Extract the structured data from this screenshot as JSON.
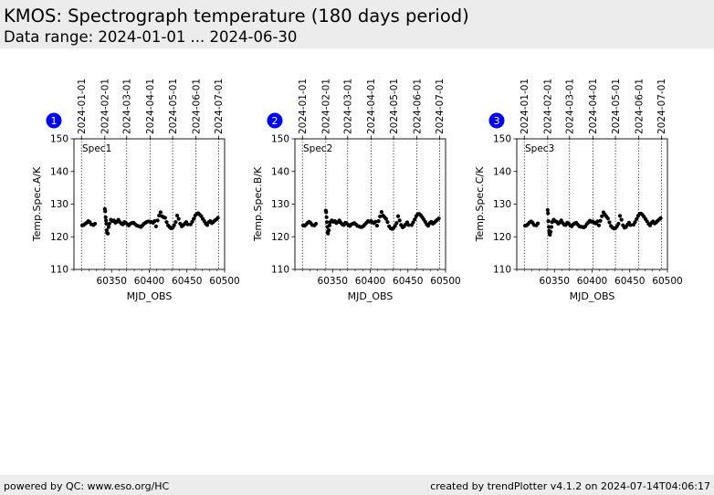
{
  "header": {
    "title": "KMOS: Spectrograph temperature (180 days period)",
    "subtitle": "Data range: 2024-01-01 ... 2024-06-30"
  },
  "footer": {
    "left": "powered by QC: www.eso.org/HC",
    "right": "created by trendPlotter v4.1.2 on 2024-07-14T04:06:17"
  },
  "colors": {
    "badge": "#0000ff",
    "markers": "#000000",
    "panel_background": "#ececec"
  },
  "chart_data": [
    {
      "type": "scatter",
      "badge": "1",
      "label": "Spec1",
      "xlabel": "MJD_OBS",
      "ylabel": "Temp.Spec.A/K",
      "xlim": [
        60300,
        60500
      ],
      "ylim": [
        110,
        150
      ],
      "xticks": [
        60350,
        60400,
        60450,
        60500
      ],
      "yticks": [
        110,
        120,
        130,
        140,
        150
      ],
      "date_ticks": [
        {
          "mjd": 60310,
          "label": "2024-01-01"
        },
        {
          "mjd": 60341,
          "label": "2024-02-01"
        },
        {
          "mjd": 60370,
          "label": "2024-03-01"
        },
        {
          "mjd": 60401,
          "label": "2024-04-01"
        },
        {
          "mjd": 60431,
          "label": "2024-05-01"
        },
        {
          "mjd": 60462,
          "label": "2024-06-01"
        },
        {
          "mjd": 60492,
          "label": "2024-07-01"
        }
      ],
      "series": [
        {
          "x": [
            60311,
            60313,
            60315,
            60317,
            60319,
            60321,
            60323,
            60326,
            60328,
            60341,
            60341.5,
            60342,
            60342.5,
            60343,
            60343.5,
            60344,
            60345,
            60346,
            60347,
            60349,
            60351,
            60353,
            60355,
            60357,
            60359,
            60361,
            60363,
            60365,
            60367,
            60369,
            60371,
            60373,
            60375,
            60377,
            60379,
            60381,
            60383,
            60385,
            60387,
            60389,
            60391,
            60393,
            60395,
            60397,
            60399,
            60401,
            60403,
            60405,
            60407,
            60409,
            60411,
            60413,
            60415,
            60417,
            60419,
            60421,
            60423,
            60425,
            60427,
            60429,
            60431,
            60433,
            60435,
            60437,
            60439,
            60441,
            60443,
            60445,
            60447,
            60449,
            60451,
            60455,
            60457,
            60459,
            60461,
            60463,
            60465,
            60467,
            60469,
            60471,
            60473,
            60475,
            60477,
            60479,
            60481,
            60483,
            60485,
            60487,
            60489,
            60491
          ],
          "y": [
            123.5,
            123.6,
            124.0,
            124.3,
            124.8,
            124.5,
            123.8,
            123.6,
            124.0,
            128.5,
            127.8,
            126.0,
            125.0,
            124.0,
            122.0,
            121.2,
            121.0,
            123.0,
            124.0,
            125.2,
            124.8,
            125.0,
            124.3,
            124.6,
            125.2,
            124.5,
            124.0,
            123.8,
            124.5,
            124.2,
            123.8,
            123.5,
            124.0,
            124.2,
            124.3,
            123.9,
            123.5,
            123.3,
            123.2,
            123.0,
            123.5,
            124.0,
            124.3,
            124.6,
            124.7,
            124.6,
            124.5,
            124.3,
            124.8,
            123.2,
            125.0,
            126.5,
            127.5,
            126.3,
            126.0,
            125.8,
            124.5,
            123.5,
            123.0,
            122.6,
            122.8,
            123.5,
            124.5,
            126.5,
            125.5,
            124.0,
            123.2,
            123.5,
            124.0,
            124.5,
            123.8,
            123.8,
            124.6,
            125.5,
            126.5,
            127.0,
            127.2,
            126.8,
            126.3,
            125.5,
            124.8,
            124.0,
            123.6,
            124.5,
            124.8,
            124.2,
            124.5,
            125.0,
            125.3,
            125.8
          ]
        }
      ]
    },
    {
      "type": "scatter",
      "badge": "2",
      "label": "Spec2",
      "xlabel": "MJD_OBS",
      "ylabel": "Temp.Spec.B/K",
      "xlim": [
        60300,
        60500
      ],
      "ylim": [
        110,
        150
      ],
      "xticks": [
        60350,
        60400,
        60450,
        60500
      ],
      "yticks": [
        110,
        120,
        130,
        140,
        150
      ],
      "date_ticks": [
        {
          "mjd": 60310,
          "label": "2024-01-01"
        },
        {
          "mjd": 60341,
          "label": "2024-02-01"
        },
        {
          "mjd": 60370,
          "label": "2024-03-01"
        },
        {
          "mjd": 60401,
          "label": "2024-04-01"
        },
        {
          "mjd": 60431,
          "label": "2024-05-01"
        },
        {
          "mjd": 60462,
          "label": "2024-06-01"
        },
        {
          "mjd": 60492,
          "label": "2024-07-01"
        }
      ],
      "series": [
        {
          "x": [
            60311,
            60313,
            60315,
            60317,
            60319,
            60321,
            60323,
            60326,
            60328,
            60341,
            60341.5,
            60342,
            60342.5,
            60343,
            60343.5,
            60344,
            60345,
            60346,
            60347,
            60349,
            60351,
            60353,
            60355,
            60357,
            60359,
            60361,
            60363,
            60365,
            60367,
            60369,
            60371,
            60373,
            60375,
            60377,
            60379,
            60381,
            60383,
            60385,
            60387,
            60389,
            60391,
            60393,
            60395,
            60397,
            60399,
            60401,
            60403,
            60405,
            60407,
            60409,
            60411,
            60413,
            60415,
            60417,
            60419,
            60421,
            60423,
            60425,
            60427,
            60429,
            60431,
            60433,
            60435,
            60437,
            60439,
            60441,
            60443,
            60445,
            60447,
            60449,
            60451,
            60455,
            60457,
            60459,
            60461,
            60463,
            60465,
            60467,
            60469,
            60471,
            60473,
            60475,
            60477,
            60479,
            60481,
            60483,
            60485,
            60487,
            60489,
            60491
          ],
          "y": [
            123.5,
            123.4,
            123.8,
            124.3,
            124.6,
            124.2,
            123.6,
            123.5,
            124.0,
            128.0,
            127.5,
            126.0,
            124.5,
            123.0,
            121.5,
            121.0,
            122.0,
            123.5,
            124.5,
            125.0,
            124.6,
            124.8,
            124.2,
            124.5,
            125.0,
            124.3,
            123.8,
            123.6,
            124.3,
            124.0,
            123.6,
            123.3,
            123.8,
            124.0,
            124.2,
            123.8,
            123.3,
            123.2,
            123.0,
            123.0,
            123.3,
            123.8,
            124.3,
            124.8,
            124.6,
            124.8,
            124.4,
            124.2,
            124.6,
            123.4,
            124.8,
            126.2,
            127.6,
            126.5,
            126.0,
            125.5,
            124.5,
            123.2,
            122.6,
            122.4,
            122.7,
            123.3,
            124.2,
            126.3,
            125.0,
            123.6,
            122.9,
            123.2,
            123.8,
            124.4,
            123.6,
            123.6,
            124.4,
            125.3,
            126.3,
            126.9,
            127.0,
            126.6,
            126.0,
            125.3,
            124.6,
            123.8,
            123.4,
            124.2,
            124.6,
            124.0,
            124.3,
            124.8,
            125.2,
            125.6
          ]
        }
      ]
    },
    {
      "type": "scatter",
      "badge": "3",
      "label": "Spec3",
      "xlabel": "MJD_OBS",
      "ylabel": "Temp.Spec.C/K",
      "xlim": [
        60300,
        60500
      ],
      "ylim": [
        110,
        150
      ],
      "xticks": [
        60350,
        60400,
        60450,
        60500
      ],
      "yticks": [
        110,
        120,
        130,
        140,
        150
      ],
      "date_ticks": [
        {
          "mjd": 60310,
          "label": "2024-01-01"
        },
        {
          "mjd": 60341,
          "label": "2024-02-01"
        },
        {
          "mjd": 60370,
          "label": "2024-03-01"
        },
        {
          "mjd": 60401,
          "label": "2024-04-01"
        },
        {
          "mjd": 60431,
          "label": "2024-05-01"
        },
        {
          "mjd": 60462,
          "label": "2024-06-01"
        },
        {
          "mjd": 60492,
          "label": "2024-07-01"
        }
      ],
      "series": [
        {
          "x": [
            60311,
            60313,
            60315,
            60317,
            60319,
            60321,
            60323,
            60326,
            60328,
            60341,
            60341.5,
            60342,
            60342.5,
            60343,
            60343.5,
            60344,
            60345,
            60346,
            60347,
            60349,
            60351,
            60353,
            60355,
            60357,
            60359,
            60361,
            60363,
            60365,
            60367,
            60369,
            60371,
            60373,
            60375,
            60377,
            60379,
            60381,
            60383,
            60385,
            60387,
            60389,
            60391,
            60393,
            60395,
            60397,
            60399,
            60401,
            60403,
            60405,
            60407,
            60409,
            60411,
            60413,
            60415,
            60417,
            60419,
            60421,
            60423,
            60425,
            60427,
            60429,
            60431,
            60433,
            60435,
            60437,
            60439,
            60441,
            60443,
            60445,
            60447,
            60449,
            60451,
            60455,
            60457,
            60459,
            60461,
            60463,
            60465,
            60467,
            60469,
            60471,
            60473,
            60475,
            60477,
            60479,
            60481,
            60483,
            60485,
            60487,
            60489,
            60491
          ],
          "y": [
            123.4,
            123.5,
            123.9,
            124.4,
            124.7,
            124.3,
            123.6,
            123.5,
            124.1,
            128.2,
            127.2,
            124.8,
            123.0,
            121.8,
            121.0,
            120.6,
            121.5,
            123.0,
            124.5,
            125.2,
            124.8,
            124.6,
            124.0,
            124.4,
            125.0,
            124.2,
            123.7,
            123.6,
            124.3,
            124.0,
            123.5,
            123.2,
            123.8,
            124.1,
            124.3,
            123.7,
            123.2,
            123.1,
            123.0,
            122.9,
            123.2,
            123.9,
            124.4,
            124.9,
            124.6,
            124.7,
            124.3,
            124.1,
            124.7,
            123.5,
            124.9,
            126.3,
            127.5,
            126.8,
            126.2,
            125.6,
            124.4,
            123.3,
            122.8,
            122.5,
            122.7,
            123.2,
            124.0,
            126.4,
            125.2,
            123.5,
            122.8,
            123.0,
            123.7,
            124.3,
            123.6,
            123.7,
            124.5,
            125.4,
            126.4,
            127.0,
            127.1,
            126.7,
            126.1,
            125.4,
            124.7,
            123.9,
            123.5,
            124.3,
            124.7,
            124.1,
            124.4,
            124.9,
            125.3,
            125.7
          ]
        }
      ]
    }
  ]
}
